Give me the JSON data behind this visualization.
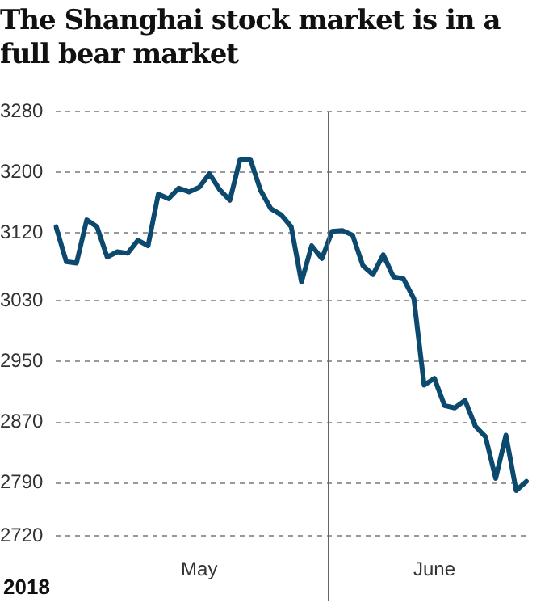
{
  "chart_data": {
    "type": "line",
    "title": "The Shanghai stock market is in a full bear market",
    "categories": [
      null,
      null,
      null,
      null,
      null,
      null,
      null,
      null,
      null,
      null,
      null,
      null,
      null,
      null,
      "May",
      null,
      null,
      null,
      null,
      null,
      null,
      null,
      null,
      null,
      null,
      null,
      null,
      null,
      null,
      null,
      null,
      null,
      null,
      null,
      null,
      null,
      null,
      "June",
      null,
      null,
      null,
      null,
      null,
      null,
      null,
      null,
      null
    ],
    "series": [
      {
        "color": "#0b4a6e",
        "values": [
          3128,
          3082,
          3080,
          3137,
          3128,
          3088,
          3095,
          3093,
          3110,
          3103,
          3171,
          3165,
          3179,
          3174,
          3180,
          3198,
          3177,
          3163,
          3217,
          3217,
          3176,
          3152,
          3144,
          3128,
          3055,
          3103,
          3086,
          3122,
          3123,
          3117,
          3077,
          3065,
          3091,
          3062,
          3059,
          3033,
          2919,
          2928,
          2892,
          2889,
          2899,
          2865,
          2851,
          2796,
          2853,
          2780,
          2792
        ]
      }
    ],
    "ylim": [
      2720,
      3280
    ],
    "yticks": [
      2720,
      2790,
      2870,
      2950,
      3030,
      3120,
      3200,
      3280
    ],
    "annotations": [
      "2018"
    ],
    "grid": "y",
    "legend": false,
    "marker": "none",
    "line_style": "solid"
  }
}
